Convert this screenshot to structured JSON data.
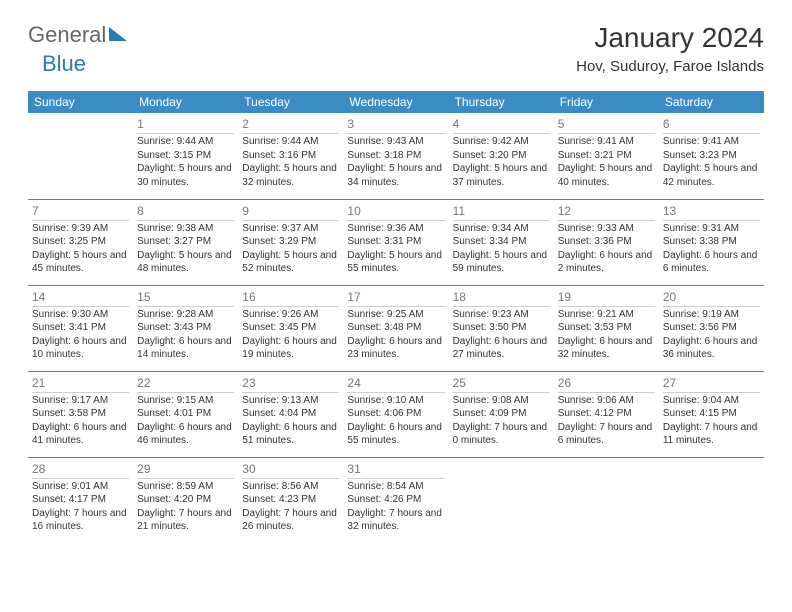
{
  "brand": {
    "general": "General",
    "blue": "Blue"
  },
  "title": "January 2024",
  "location": "Hov, Suduroy, Faroe Islands",
  "colors": {
    "header_bg": "#3b8bc4",
    "header_text": "#ffffff",
    "row_separator": "#3b8bc4",
    "daynum_color": "#777777",
    "text": "#333333",
    "logo_accent": "#2a7ab8"
  },
  "dayNames": [
    "Sunday",
    "Monday",
    "Tuesday",
    "Wednesday",
    "Thursday",
    "Friday",
    "Saturday"
  ],
  "weeks": [
    [
      null,
      {
        "d": "1",
        "sr": "9:44 AM",
        "ss": "3:15 PM",
        "dl": "5 hours and 30 minutes."
      },
      {
        "d": "2",
        "sr": "9:44 AM",
        "ss": "3:16 PM",
        "dl": "5 hours and 32 minutes."
      },
      {
        "d": "3",
        "sr": "9:43 AM",
        "ss": "3:18 PM",
        "dl": "5 hours and 34 minutes."
      },
      {
        "d": "4",
        "sr": "9:42 AM",
        "ss": "3:20 PM",
        "dl": "5 hours and 37 minutes."
      },
      {
        "d": "5",
        "sr": "9:41 AM",
        "ss": "3:21 PM",
        "dl": "5 hours and 40 minutes."
      },
      {
        "d": "6",
        "sr": "9:41 AM",
        "ss": "3:23 PM",
        "dl": "5 hours and 42 minutes."
      }
    ],
    [
      {
        "d": "7",
        "sr": "9:39 AM",
        "ss": "3:25 PM",
        "dl": "5 hours and 45 minutes."
      },
      {
        "d": "8",
        "sr": "9:38 AM",
        "ss": "3:27 PM",
        "dl": "5 hours and 48 minutes."
      },
      {
        "d": "9",
        "sr": "9:37 AM",
        "ss": "3:29 PM",
        "dl": "5 hours and 52 minutes."
      },
      {
        "d": "10",
        "sr": "9:36 AM",
        "ss": "3:31 PM",
        "dl": "5 hours and 55 minutes."
      },
      {
        "d": "11",
        "sr": "9:34 AM",
        "ss": "3:34 PM",
        "dl": "5 hours and 59 minutes."
      },
      {
        "d": "12",
        "sr": "9:33 AM",
        "ss": "3:36 PM",
        "dl": "6 hours and 2 minutes."
      },
      {
        "d": "13",
        "sr": "9:31 AM",
        "ss": "3:38 PM",
        "dl": "6 hours and 6 minutes."
      }
    ],
    [
      {
        "d": "14",
        "sr": "9:30 AM",
        "ss": "3:41 PM",
        "dl": "6 hours and 10 minutes."
      },
      {
        "d": "15",
        "sr": "9:28 AM",
        "ss": "3:43 PM",
        "dl": "6 hours and 14 minutes."
      },
      {
        "d": "16",
        "sr": "9:26 AM",
        "ss": "3:45 PM",
        "dl": "6 hours and 19 minutes."
      },
      {
        "d": "17",
        "sr": "9:25 AM",
        "ss": "3:48 PM",
        "dl": "6 hours and 23 minutes."
      },
      {
        "d": "18",
        "sr": "9:23 AM",
        "ss": "3:50 PM",
        "dl": "6 hours and 27 minutes."
      },
      {
        "d": "19",
        "sr": "9:21 AM",
        "ss": "3:53 PM",
        "dl": "6 hours and 32 minutes."
      },
      {
        "d": "20",
        "sr": "9:19 AM",
        "ss": "3:56 PM",
        "dl": "6 hours and 36 minutes."
      }
    ],
    [
      {
        "d": "21",
        "sr": "9:17 AM",
        "ss": "3:58 PM",
        "dl": "6 hours and 41 minutes."
      },
      {
        "d": "22",
        "sr": "9:15 AM",
        "ss": "4:01 PM",
        "dl": "6 hours and 46 minutes."
      },
      {
        "d": "23",
        "sr": "9:13 AM",
        "ss": "4:04 PM",
        "dl": "6 hours and 51 minutes."
      },
      {
        "d": "24",
        "sr": "9:10 AM",
        "ss": "4:06 PM",
        "dl": "6 hours and 55 minutes."
      },
      {
        "d": "25",
        "sr": "9:08 AM",
        "ss": "4:09 PM",
        "dl": "7 hours and 0 minutes."
      },
      {
        "d": "26",
        "sr": "9:06 AM",
        "ss": "4:12 PM",
        "dl": "7 hours and 6 minutes."
      },
      {
        "d": "27",
        "sr": "9:04 AM",
        "ss": "4:15 PM",
        "dl": "7 hours and 11 minutes."
      }
    ],
    [
      {
        "d": "28",
        "sr": "9:01 AM",
        "ss": "4:17 PM",
        "dl": "7 hours and 16 minutes."
      },
      {
        "d": "29",
        "sr": "8:59 AM",
        "ss": "4:20 PM",
        "dl": "7 hours and 21 minutes."
      },
      {
        "d": "30",
        "sr": "8:56 AM",
        "ss": "4:23 PM",
        "dl": "7 hours and 26 minutes."
      },
      {
        "d": "31",
        "sr": "8:54 AM",
        "ss": "4:26 PM",
        "dl": "7 hours and 32 minutes."
      },
      null,
      null,
      null
    ]
  ],
  "labels": {
    "sunrise": "Sunrise:",
    "sunset": "Sunset:",
    "daylight": "Daylight:"
  }
}
